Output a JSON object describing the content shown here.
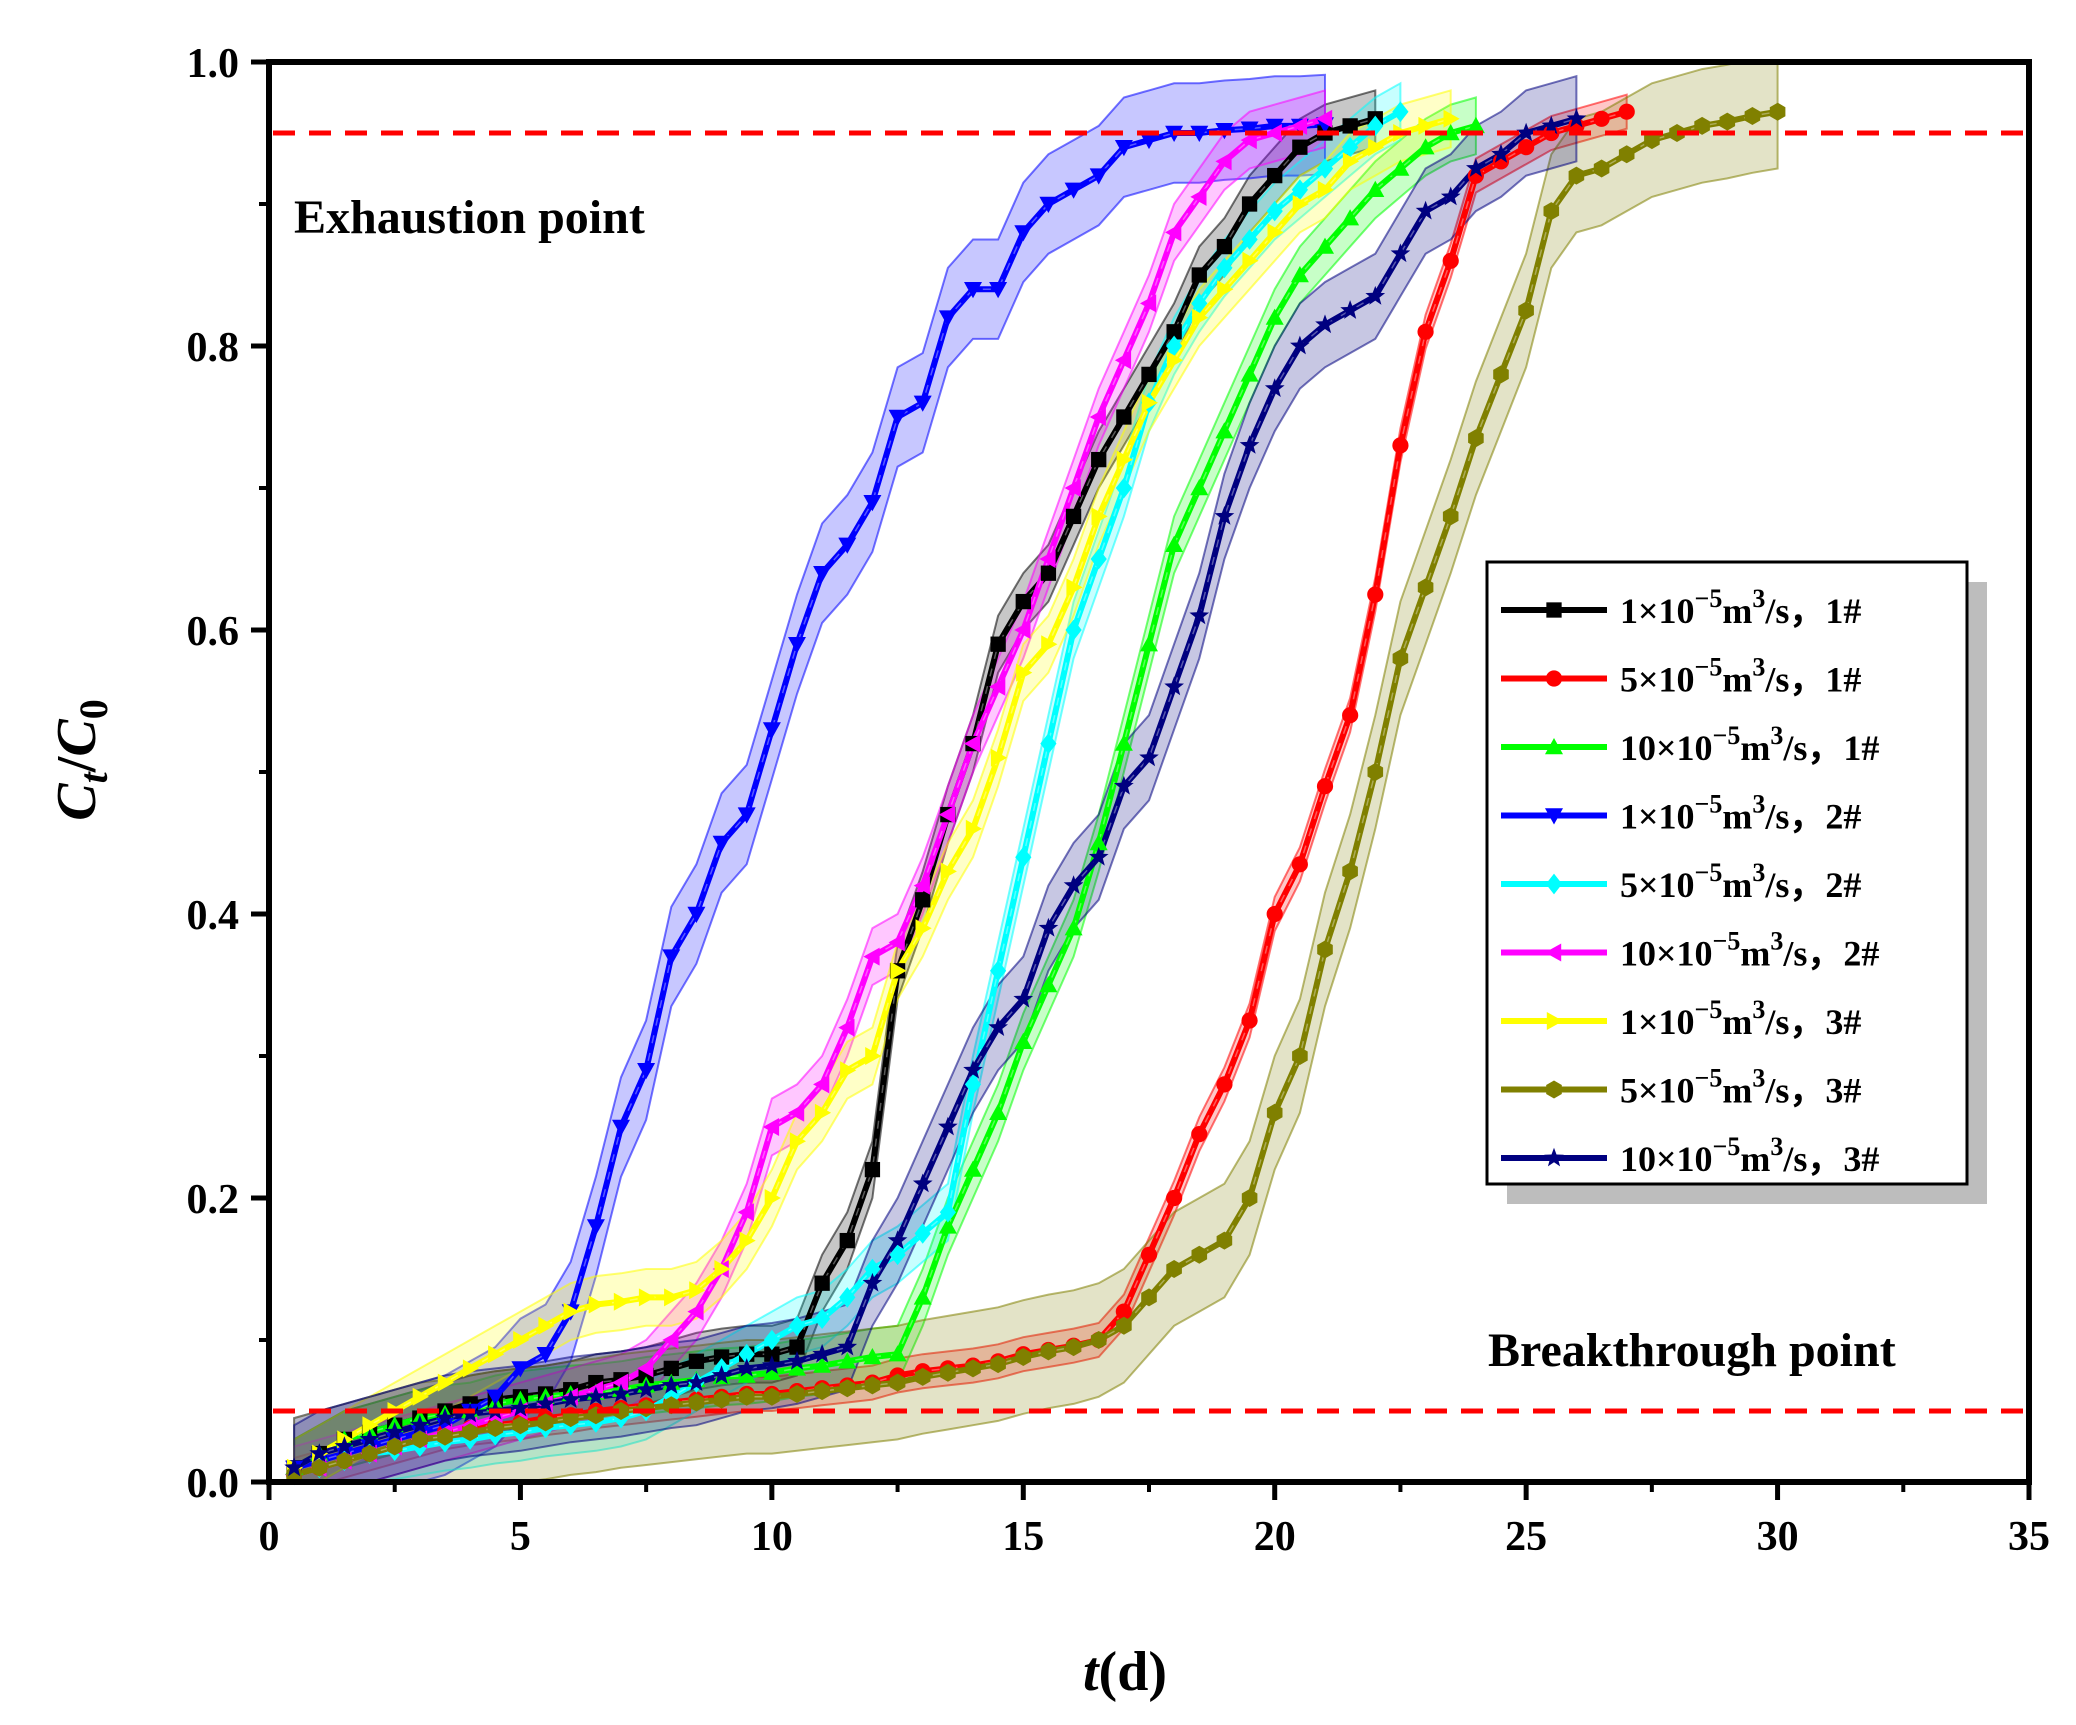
{
  "chart_data": {
    "type": "line",
    "title": "",
    "xlabel": "t(d)",
    "xlabel_parts": {
      "var": "t",
      "unit": "(d)"
    },
    "ylabel": "Ct/C0",
    "ylabel_parts": {
      "main1": "C",
      "sub1": "t",
      "slash": "/",
      "main2": "C",
      "sub2": "0"
    },
    "xlim": [
      0,
      35
    ],
    "ylim": [
      0,
      1.0
    ],
    "xticks": [
      0,
      5,
      10,
      15,
      20,
      25,
      30,
      35
    ],
    "xtick_labels": [
      "0",
      "5",
      "10",
      "15",
      "20",
      "25",
      "30",
      "35"
    ],
    "yticks": [
      0,
      0.2,
      0.4,
      0.6,
      0.8,
      1.0
    ],
    "ytick_labels": [
      "0.0",
      "0.2",
      "0.4",
      "0.6",
      "0.8",
      "1.0"
    ],
    "grid": false,
    "legend_position": "right-middle",
    "reference_lines": [
      {
        "y": 0.95,
        "color": "#ff0000",
        "style": "dashed",
        "label": "Exhaustion point"
      },
      {
        "y": 0.05,
        "color": "#ff0000",
        "style": "dashed",
        "label": "Breakthrough point"
      }
    ],
    "annotations": [
      {
        "id": "exhaustion",
        "text": "Exhaustion point",
        "x": 0.5,
        "y": 0.89
      },
      {
        "id": "breakthrough",
        "text": "Breakthrough point",
        "x": 24.6,
        "y": 0.092
      }
    ],
    "series": [
      {
        "name": "1×10^-5m^3/s, 1#",
        "label": {
          "coef": "1×10",
          "exp1": "−5",
          "unit": "m",
          "exp2": "3",
          "tail": "/s，1#"
        },
        "color": "#000000",
        "marker": "square",
        "band": 0.02,
        "x": [
          0.5,
          1,
          1.5,
          2,
          2.5,
          3,
          3.5,
          4,
          4.5,
          5,
          5.5,
          6,
          6.5,
          7,
          7.5,
          8,
          8.5,
          9,
          9.5,
          10,
          10.5,
          11,
          11.5,
          12,
          12.5,
          13,
          13.5,
          14,
          14.5,
          15,
          15.5,
          16,
          16.5,
          17,
          17.5,
          18,
          18.5,
          19,
          19.5,
          20,
          20.5,
          21,
          21.5,
          22
        ],
        "y": [
          0.01,
          0.02,
          0.03,
          0.035,
          0.04,
          0.045,
          0.05,
          0.055,
          0.058,
          0.06,
          0.062,
          0.065,
          0.07,
          0.072,
          0.075,
          0.08,
          0.085,
          0.088,
          0.09,
          0.09,
          0.095,
          0.14,
          0.17,
          0.22,
          0.36,
          0.41,
          0.47,
          0.52,
          0.59,
          0.62,
          0.64,
          0.68,
          0.72,
          0.75,
          0.78,
          0.81,
          0.85,
          0.87,
          0.9,
          0.92,
          0.94,
          0.95,
          0.955,
          0.96
        ]
      },
      {
        "name": "5×10^-5m^3/s, 1#",
        "label": {
          "coef": "5×10",
          "exp1": "−5",
          "unit": "m",
          "exp2": "3",
          "tail": "/s，1#"
        },
        "color": "#ff0000",
        "marker": "circle",
        "band": 0.012,
        "x": [
          0.5,
          1,
          1.5,
          2,
          2.5,
          3,
          3.5,
          4,
          4.5,
          5,
          5.5,
          6,
          6.5,
          7,
          7.5,
          8,
          8.5,
          9,
          9.5,
          10,
          10.5,
          11,
          11.5,
          12,
          12.5,
          13,
          13.5,
          14,
          14.5,
          15,
          15.5,
          16,
          16.5,
          17,
          17.5,
          18,
          18.5,
          19,
          19.5,
          20,
          20.5,
          21,
          21.5,
          22,
          22.5,
          23,
          23.5,
          24,
          24.5,
          25,
          25.5,
          26,
          26.5,
          27
        ],
        "y": [
          0.005,
          0.01,
          0.015,
          0.02,
          0.025,
          0.03,
          0.035,
          0.038,
          0.04,
          0.042,
          0.045,
          0.047,
          0.05,
          0.052,
          0.054,
          0.056,
          0.058,
          0.06,
          0.062,
          0.062,
          0.064,
          0.066,
          0.068,
          0.07,
          0.075,
          0.078,
          0.08,
          0.082,
          0.085,
          0.09,
          0.093,
          0.096,
          0.1,
          0.12,
          0.16,
          0.2,
          0.245,
          0.28,
          0.325,
          0.4,
          0.435,
          0.49,
          0.54,
          0.625,
          0.73,
          0.81,
          0.86,
          0.92,
          0.93,
          0.94,
          0.95,
          0.955,
          0.96,
          0.965
        ]
      },
      {
        "name": "10×10^-5m^3/s, 1#",
        "label": {
          "coef": "10×10",
          "exp1": "−5",
          "unit": "m",
          "exp2": "3",
          "tail": "/s，1#"
        },
        "color": "#00ff00",
        "marker": "triangle-up",
        "band": 0.02,
        "x": [
          0.5,
          1,
          1.5,
          2,
          2.5,
          3,
          3.5,
          4,
          4.5,
          5,
          5.5,
          6,
          6.5,
          7,
          7.5,
          8,
          8.5,
          9,
          9.5,
          10,
          10.5,
          11,
          11.5,
          12,
          12.5,
          13,
          13.5,
          14,
          14.5,
          15,
          15.5,
          16,
          16.5,
          17,
          17.5,
          18,
          18.5,
          19,
          19.5,
          20,
          20.5,
          21,
          21.5,
          22,
          22.5,
          23,
          23.5,
          24
        ],
        "y": [
          0.01,
          0.02,
          0.03,
          0.035,
          0.04,
          0.045,
          0.048,
          0.05,
          0.055,
          0.058,
          0.06,
          0.062,
          0.063,
          0.065,
          0.068,
          0.07,
          0.072,
          0.074,
          0.075,
          0.077,
          0.08,
          0.082,
          0.085,
          0.088,
          0.09,
          0.13,
          0.18,
          0.22,
          0.26,
          0.31,
          0.35,
          0.39,
          0.45,
          0.52,
          0.59,
          0.66,
          0.7,
          0.74,
          0.78,
          0.82,
          0.85,
          0.87,
          0.89,
          0.91,
          0.925,
          0.94,
          0.95,
          0.955
        ]
      },
      {
        "name": "1×10^-5m^3/s, 2#",
        "label": {
          "coef": "1×10",
          "exp1": "−5",
          "unit": "m",
          "exp2": "3",
          "tail": "/s，2#"
        },
        "color": "#0000ff",
        "marker": "triangle-down",
        "band": 0.035,
        "x": [
          0.5,
          1,
          1.5,
          2,
          2.5,
          3,
          3.5,
          4,
          4.5,
          5,
          5.5,
          6,
          6.5,
          7,
          7.5,
          8,
          8.5,
          9,
          9.5,
          10,
          10.5,
          11,
          11.5,
          12,
          12.5,
          13,
          13.5,
          14,
          14.5,
          15,
          15.5,
          16,
          16.5,
          17,
          17.5,
          18,
          18.5,
          19,
          19.5,
          20,
          20.5,
          21
        ],
        "y": [
          0.01,
          0.015,
          0.02,
          0.025,
          0.03,
          0.035,
          0.04,
          0.05,
          0.06,
          0.08,
          0.09,
          0.12,
          0.18,
          0.25,
          0.29,
          0.37,
          0.4,
          0.45,
          0.47,
          0.53,
          0.59,
          0.64,
          0.66,
          0.69,
          0.75,
          0.76,
          0.82,
          0.84,
          0.84,
          0.88,
          0.9,
          0.91,
          0.92,
          0.94,
          0.945,
          0.95,
          0.95,
          0.952,
          0.953,
          0.955,
          0.955,
          0.956
        ]
      },
      {
        "name": "5×10^-5m^3/s, 2#",
        "label": {
          "coef": "5×10",
          "exp1": "−5",
          "unit": "m",
          "exp2": "3",
          "tail": "/s，2#"
        },
        "color": "#00ffff",
        "marker": "diamond",
        "band": 0.02,
        "x": [
          0.5,
          1,
          1.5,
          2,
          2.5,
          3,
          3.5,
          4,
          4.5,
          5,
          5.5,
          6,
          6.5,
          7,
          7.5,
          8,
          8.5,
          9,
          9.5,
          10,
          10.5,
          11,
          11.5,
          12,
          12.5,
          13,
          13.5,
          14,
          14.5,
          15,
          15.5,
          16,
          16.5,
          17,
          17.5,
          18,
          18.5,
          19,
          19.5,
          20,
          20.5,
          21,
          21.5,
          22,
          22.5
        ],
        "y": [
          0.005,
          0.01,
          0.015,
          0.02,
          0.022,
          0.025,
          0.028,
          0.03,
          0.033,
          0.035,
          0.038,
          0.04,
          0.042,
          0.045,
          0.05,
          0.06,
          0.07,
          0.08,
          0.09,
          0.1,
          0.11,
          0.115,
          0.13,
          0.15,
          0.16,
          0.175,
          0.19,
          0.28,
          0.36,
          0.44,
          0.52,
          0.6,
          0.65,
          0.7,
          0.76,
          0.8,
          0.83,
          0.855,
          0.875,
          0.895,
          0.91,
          0.925,
          0.94,
          0.955,
          0.965
        ]
      },
      {
        "name": "10×10^-5m^3/s, 2#",
        "label": {
          "coef": "10×10",
          "exp1": "−5",
          "unit": "m",
          "exp2": "3",
          "tail": "/s，2#"
        },
        "color": "#ff00ff",
        "marker": "triangle-left",
        "band": 0.02,
        "x": [
          0.5,
          1,
          1.5,
          2,
          2.5,
          3,
          3.5,
          4,
          4.5,
          5,
          5.5,
          6,
          6.5,
          7,
          7.5,
          8,
          8.5,
          9,
          9.5,
          10,
          10.5,
          11,
          11.5,
          12,
          12.5,
          13,
          13.5,
          14,
          14.5,
          15,
          15.5,
          16,
          16.5,
          17,
          17.5,
          18,
          18.5,
          19,
          19.5,
          20,
          20.5,
          21
        ],
        "y": [
          0.005,
          0.01,
          0.015,
          0.02,
          0.025,
          0.03,
          0.035,
          0.04,
          0.045,
          0.05,
          0.055,
          0.06,
          0.065,
          0.07,
          0.08,
          0.1,
          0.12,
          0.15,
          0.19,
          0.25,
          0.26,
          0.28,
          0.32,
          0.37,
          0.38,
          0.42,
          0.47,
          0.52,
          0.56,
          0.6,
          0.65,
          0.7,
          0.75,
          0.79,
          0.83,
          0.88,
          0.905,
          0.93,
          0.945,
          0.95,
          0.955,
          0.96
        ]
      },
      {
        "name": "1×10^-5m^3/s, 3#",
        "label": {
          "coef": "1×10",
          "exp1": "−5",
          "unit": "m",
          "exp2": "3",
          "tail": "/s，3#"
        },
        "color": "#ffff00",
        "marker": "triangle-right",
        "band": 0.02,
        "x": [
          0.5,
          1,
          1.5,
          2,
          2.5,
          3,
          3.5,
          4,
          4.5,
          5,
          5.5,
          6,
          6.5,
          7,
          7.5,
          8,
          8.5,
          9,
          9.5,
          10,
          10.5,
          11,
          11.5,
          12,
          12.5,
          13,
          13.5,
          14,
          14.5,
          15,
          15.5,
          16,
          16.5,
          17,
          17.5,
          18,
          18.5,
          19,
          19.5,
          20,
          20.5,
          21,
          21.5,
          22,
          22.5,
          23,
          23.5
        ],
        "y": [
          0.01,
          0.02,
          0.03,
          0.04,
          0.05,
          0.06,
          0.07,
          0.08,
          0.09,
          0.1,
          0.11,
          0.12,
          0.125,
          0.127,
          0.13,
          0.13,
          0.135,
          0.15,
          0.17,
          0.2,
          0.24,
          0.26,
          0.29,
          0.3,
          0.36,
          0.39,
          0.43,
          0.46,
          0.51,
          0.57,
          0.59,
          0.63,
          0.68,
          0.72,
          0.76,
          0.79,
          0.82,
          0.84,
          0.86,
          0.88,
          0.9,
          0.91,
          0.93,
          0.94,
          0.95,
          0.955,
          0.96
        ]
      },
      {
        "name": "5×10^-5m^3/s, 3#",
        "label": {
          "coef": "5×10",
          "exp1": "−5",
          "unit": "m",
          "exp2": "3",
          "tail": "/s，3#"
        },
        "color": "#808000",
        "marker": "hexagon",
        "band": 0.04,
        "x": [
          0.5,
          1,
          1.5,
          2,
          2.5,
          3,
          3.5,
          4,
          4.5,
          5,
          5.5,
          6,
          6.5,
          7,
          7.5,
          8,
          8.5,
          9,
          9.5,
          10,
          10.5,
          11,
          11.5,
          12,
          12.5,
          13,
          13.5,
          14,
          14.5,
          15,
          15.5,
          16,
          16.5,
          17,
          17.5,
          18,
          18.5,
          19,
          19.5,
          20,
          20.5,
          21,
          21.5,
          22,
          22.5,
          23,
          23.5,
          24,
          24.5,
          25,
          25.5,
          26,
          26.5,
          27,
          27.5,
          28,
          28.5,
          29,
          29.5,
          30
        ],
        "y": [
          0.005,
          0.01,
          0.015,
          0.02,
          0.025,
          0.03,
          0.032,
          0.035,
          0.038,
          0.04,
          0.042,
          0.045,
          0.047,
          0.05,
          0.052,
          0.054,
          0.056,
          0.058,
          0.06,
          0.06,
          0.062,
          0.064,
          0.066,
          0.068,
          0.07,
          0.074,
          0.077,
          0.08,
          0.083,
          0.088,
          0.092,
          0.095,
          0.1,
          0.11,
          0.13,
          0.15,
          0.16,
          0.17,
          0.2,
          0.26,
          0.3,
          0.375,
          0.43,
          0.5,
          0.58,
          0.63,
          0.68,
          0.735,
          0.78,
          0.825,
          0.895,
          0.92,
          0.925,
          0.935,
          0.945,
          0.95,
          0.955,
          0.958,
          0.962,
          0.965
        ]
      },
      {
        "name": "10×10^-5m^3/s, 3#",
        "label": {
          "coef": "10×10",
          "exp1": "−5",
          "unit": "m",
          "exp2": "3",
          "tail": "/s，3#"
        },
        "color": "#000080",
        "marker": "star",
        "band": 0.03,
        "x": [
          0.5,
          1,
          1.5,
          2,
          2.5,
          3,
          3.5,
          4,
          4.5,
          5,
          5.5,
          6,
          6.5,
          7,
          7.5,
          8,
          8.5,
          9,
          9.5,
          10,
          10.5,
          11,
          11.5,
          12,
          12.5,
          13,
          13.5,
          14,
          14.5,
          15,
          15.5,
          16,
          16.5,
          17,
          17.5,
          18,
          18.5,
          19,
          19.5,
          20,
          20.5,
          21,
          21.5,
          22,
          22.5,
          23,
          23.5,
          24,
          24.5,
          25,
          25.5,
          26
        ],
        "y": [
          0.01,
          0.02,
          0.025,
          0.03,
          0.035,
          0.04,
          0.045,
          0.048,
          0.05,
          0.052,
          0.055,
          0.058,
          0.06,
          0.062,
          0.065,
          0.068,
          0.07,
          0.075,
          0.08,
          0.082,
          0.085,
          0.09,
          0.095,
          0.14,
          0.17,
          0.21,
          0.25,
          0.29,
          0.32,
          0.34,
          0.39,
          0.42,
          0.44,
          0.49,
          0.51,
          0.56,
          0.61,
          0.68,
          0.73,
          0.77,
          0.8,
          0.815,
          0.825,
          0.835,
          0.865,
          0.895,
          0.905,
          0.925,
          0.935,
          0.95,
          0.955,
          0.96
        ]
      }
    ]
  }
}
